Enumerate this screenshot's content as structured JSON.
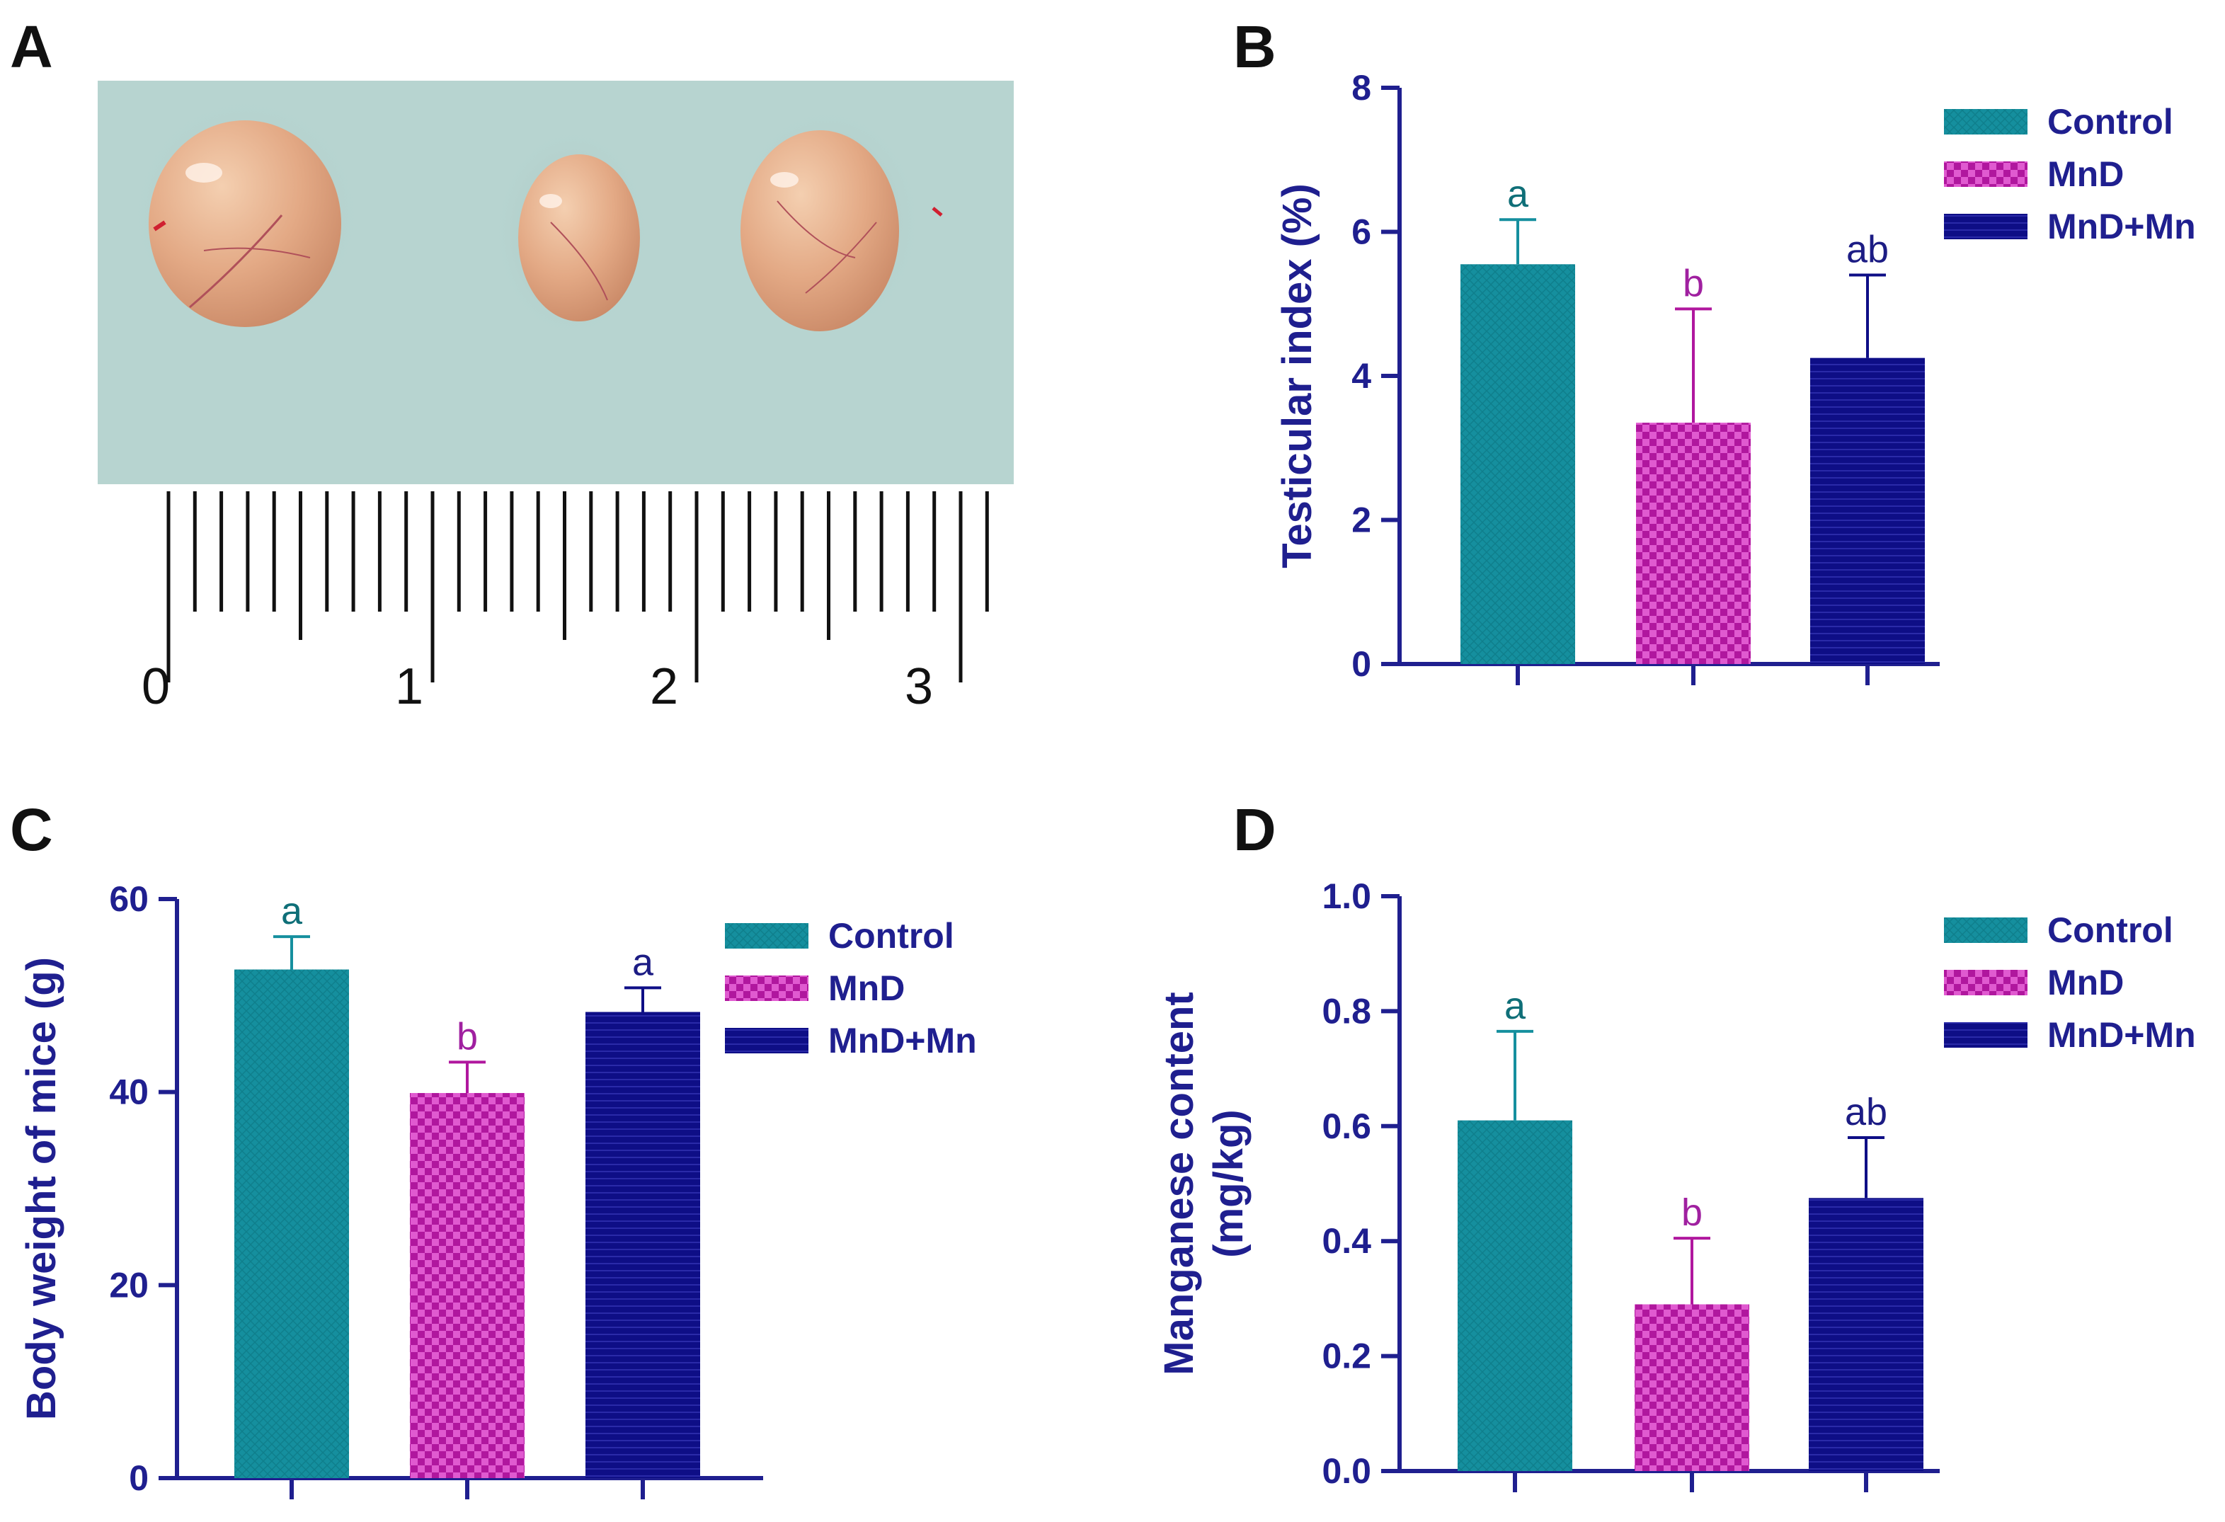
{
  "panels": {
    "a": {
      "letter": "A"
    },
    "b": {
      "letter": "B"
    },
    "c": {
      "letter": "C"
    },
    "d": {
      "letter": "D"
    }
  },
  "photo": {
    "ruler_numbers": [
      "0",
      "1",
      "2",
      "3"
    ],
    "colors": {
      "paper": "#b7d4d0",
      "ruler": "#ffffff",
      "testis": "#e2a882"
    }
  },
  "colors": {
    "axis": "#1f1f8f",
    "control": "#158f9e",
    "mnd": "#b0179e",
    "mndmn": "#0e0e86",
    "sig_control": "#0f6f78",
    "sig_mnd": "#a020a0",
    "sig_mndmn": "#1c1c84"
  },
  "legend": [
    "Control",
    "MnD",
    "MnD+Mn"
  ],
  "chart_data": [
    {
      "panel": "B",
      "type": "bar",
      "categories": [
        "Control",
        "MnD",
        "MnD+Mn"
      ],
      "values": [
        5.55,
        3.35,
        4.25
      ],
      "errors": [
        0.62,
        1.58,
        1.15
      ],
      "significance": [
        "a",
        "b",
        "ab"
      ],
      "ylabel": "Testicular index (%)",
      "ylim": [
        0,
        8
      ],
      "yticks": [
        0,
        2,
        4,
        6,
        8
      ],
      "ytick_labels": [
        "0",
        "2",
        "4",
        "6",
        "8"
      ],
      "legend": "top-right"
    },
    {
      "panel": "C",
      "type": "bar",
      "categories": [
        "Control",
        "MnD",
        "MnD+Mn"
      ],
      "values": [
        52.7,
        39.9,
        48.3
      ],
      "errors": [
        3.4,
        3.2,
        2.5
      ],
      "significance": [
        "a",
        "b",
        "a"
      ],
      "ylabel": "Body weight of mice (g)",
      "ylim": [
        0,
        60
      ],
      "yticks": [
        0,
        20,
        40,
        60
      ],
      "ytick_labels": [
        "0",
        "20",
        "40",
        "60"
      ],
      "legend": "top-right"
    },
    {
      "panel": "D",
      "type": "bar",
      "categories": [
        "Control",
        "MnD",
        "MnD+Mn"
      ],
      "values": [
        0.61,
        0.29,
        0.475
      ],
      "errors": [
        0.155,
        0.115,
        0.105
      ],
      "significance": [
        "a",
        "b",
        "ab"
      ],
      "ylabel": "Manganese content",
      "ylabel2": "(mg/kg)",
      "ylim": [
        0,
        1.0
      ],
      "yticks": [
        0,
        0.2,
        0.4,
        0.6,
        0.8,
        1.0
      ],
      "ytick_labels": [
        "0.0",
        "0.2",
        "0.4",
        "0.6",
        "0.8",
        "1.0"
      ],
      "legend": "top-right"
    }
  ]
}
